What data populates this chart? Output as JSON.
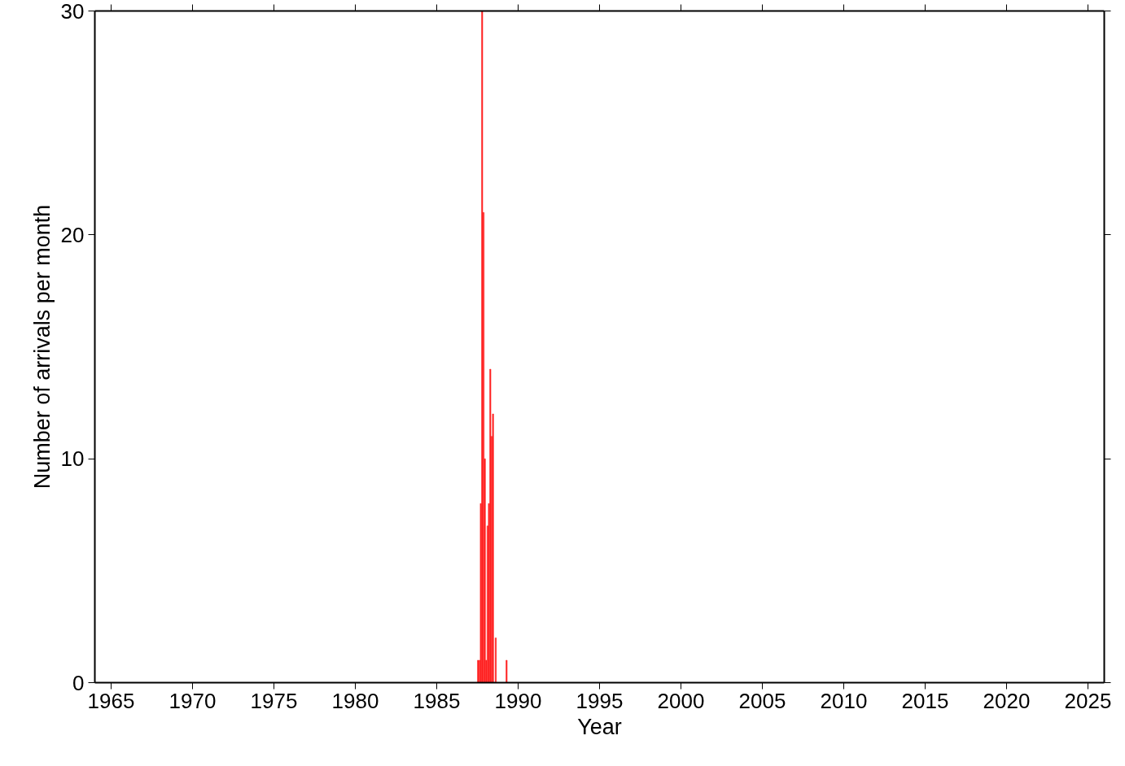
{
  "chart_data": {
    "type": "bar",
    "xlabel": "Year",
    "ylabel": "Number of arrivals per month",
    "x": [
      "1987-07",
      "1987-08",
      "1987-09",
      "1987-10",
      "1987-11",
      "1987-12",
      "1988-01",
      "1988-02",
      "1988-03",
      "1988-04",
      "1988-05",
      "1988-06",
      "1988-08",
      "1989-04"
    ],
    "values": [
      1,
      1,
      8,
      30,
      21,
      10,
      1,
      7,
      8,
      14,
      11,
      12,
      2,
      1
    ],
    "color": "#ff2020",
    "xlim": [
      "1964",
      "2026"
    ],
    "xticks": [
      "1965",
      "1970",
      "1975",
      "1980",
      "1985",
      "1990",
      "1995",
      "2000",
      "2005",
      "2010",
      "2015",
      "2020",
      "2025"
    ],
    "ylim": [
      0,
      30
    ],
    "yticks": [
      0,
      10,
      20,
      30
    ],
    "grid": false
  }
}
